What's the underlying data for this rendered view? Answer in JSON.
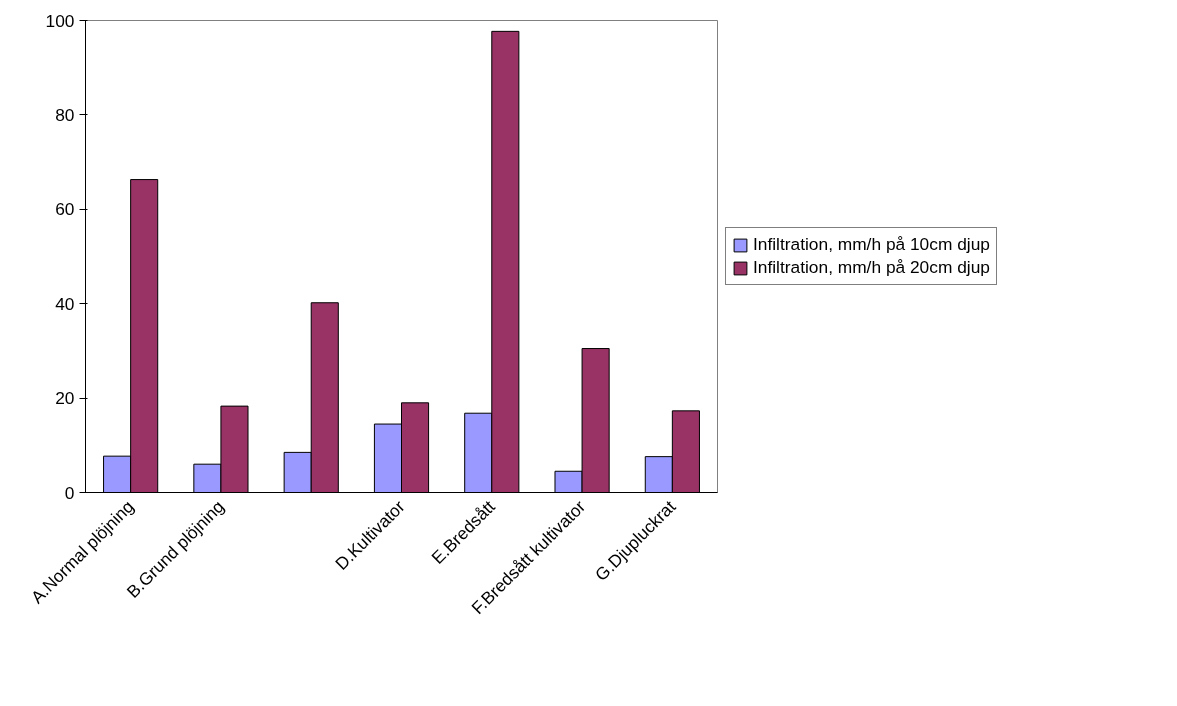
{
  "chart_data": {
    "type": "bar",
    "categories": [
      "A.Normal plöjning",
      "B.Grund plöjning",
      null,
      "D.Kultivator",
      "E.Bredsått",
      "F.Bredsått kultivator",
      "G.Djupluckrat"
    ],
    "series": [
      {
        "name": "Infiltration, mm/h på 10cm djup",
        "color": "#9999ff",
        "values": [
          7.7,
          6.0,
          8.5,
          14.5,
          16.8,
          4.5,
          7.6
        ]
      },
      {
        "name": "Infiltration, mm/h på 20cm djup",
        "color": "#993366",
        "values": [
          66.3,
          18.3,
          40.2,
          19.0,
          97.7,
          30.5,
          17.3
        ]
      }
    ],
    "ylim": [
      0,
      100
    ],
    "yticks": [
      0,
      20,
      40,
      60,
      80,
      100
    ],
    "grid": false,
    "legend": "right"
  }
}
